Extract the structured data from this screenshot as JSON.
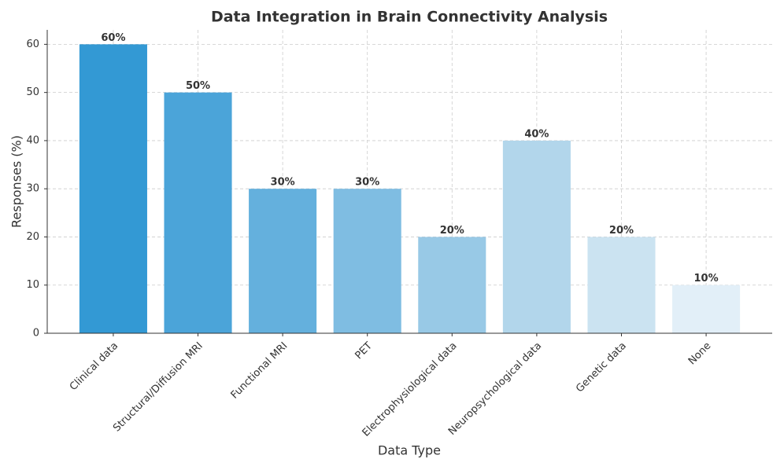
{
  "chart_data": {
    "type": "bar",
    "title": "Data Integration in Brain Connectivity Analysis",
    "x_label": "Data Type",
    "y_label": "Responses (%)",
    "categories": [
      "Clinical data",
      "Structural/Diffusion MRI",
      "Functional MRI",
      "PET",
      "Electrophysiological data",
      "Neuropsychological data",
      "Genetic data",
      "None"
    ],
    "values": [
      60,
      50,
      30,
      30,
      20,
      40,
      20,
      10
    ],
    "value_labels": [
      "60%",
      "50%",
      "30%",
      "30%",
      "20%",
      "40%",
      "20%",
      "10%"
    ],
    "colors": [
      "#3399d4",
      "#4ba4d9",
      "#64b0dd",
      "#7fbde2",
      "#98c9e6",
      "#b2d6eb",
      "#cbe3f1",
      "#e2eff8"
    ],
    "ylim": [
      0,
      63
    ],
    "yticks": [
      0,
      10,
      20,
      30,
      40,
      50,
      60
    ],
    "grid": true
  }
}
